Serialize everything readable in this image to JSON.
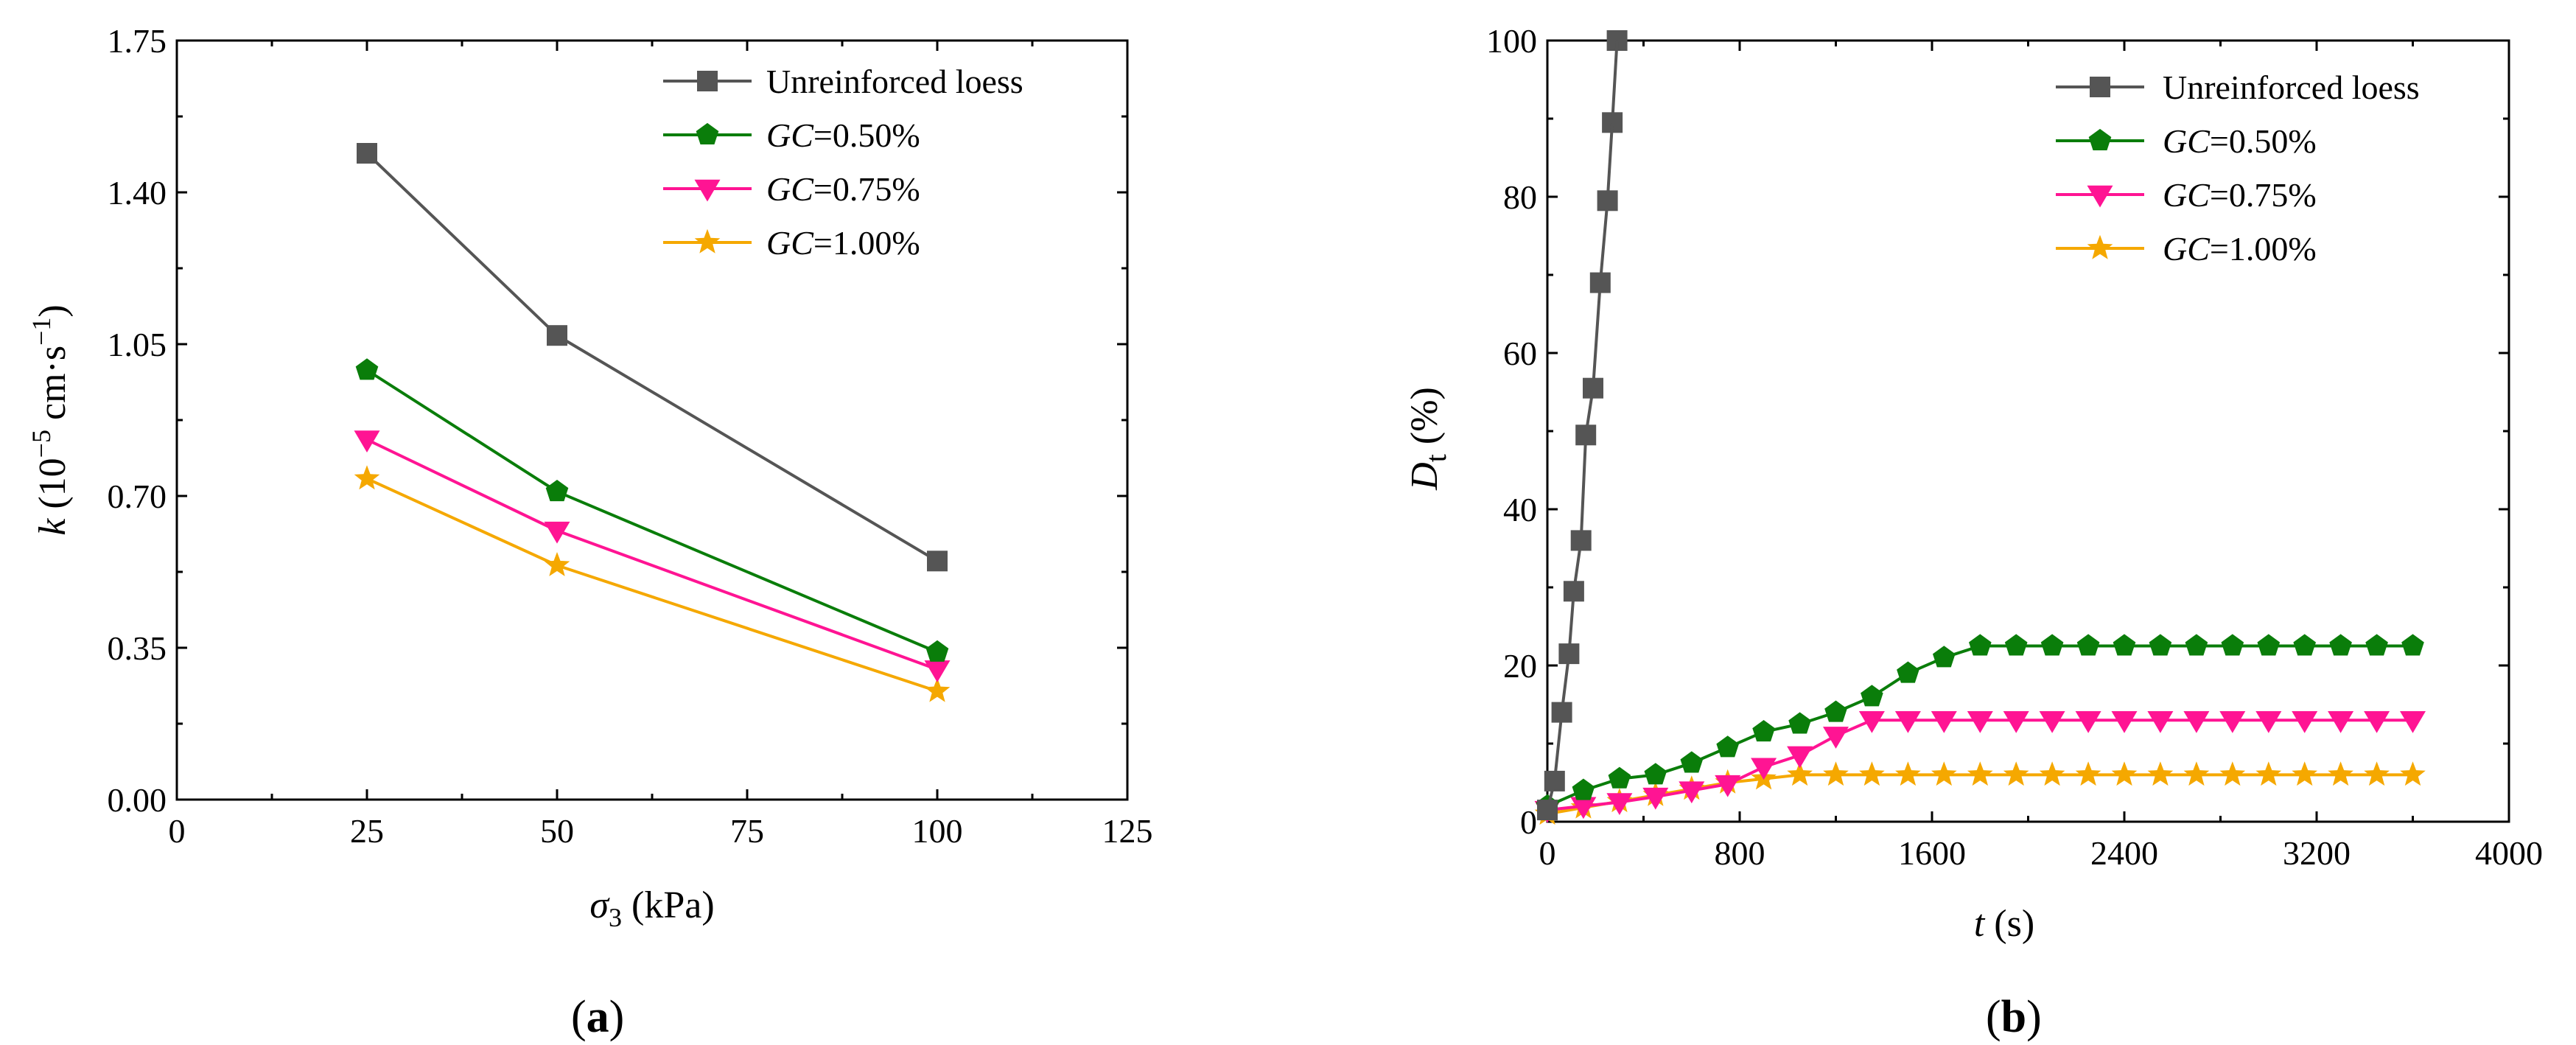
{
  "chart_data": [
    {
      "id": "a",
      "type": "line",
      "panel_label": {
        "open": "(",
        "letter": "a",
        "close": ")"
      },
      "xlabel": {
        "symbol": "σ",
        "sub": "3",
        "unit": " (kPa)"
      },
      "ylabel": {
        "symbol": "k",
        "pre": " (10",
        "exp": "−5",
        "mid": " cm·s",
        "exp2": "−1",
        "post": ")"
      },
      "xlim": [
        0,
        125
      ],
      "ylim": [
        0,
        1.75
      ],
      "xticks": [
        0,
        25,
        50,
        75,
        100,
        125
      ],
      "yticks": [
        0.0,
        0.35,
        0.7,
        1.05,
        1.4,
        1.75
      ],
      "xtick_labels": [
        "0",
        "25",
        "50",
        "75",
        "100",
        "125"
      ],
      "ytick_labels": [
        "0.00",
        "0.35",
        "0.70",
        "1.05",
        "1.40",
        "1.75"
      ],
      "legend_position": "top-right",
      "series": [
        {
          "key": "unreinforced",
          "label": "Unreinforced loess",
          "color": "#555555",
          "marker": "square",
          "x": [
            25,
            50,
            100
          ],
          "y": [
            1.49,
            1.07,
            0.55
          ]
        },
        {
          "key": "gc050",
          "label_it": "GC",
          "label_rest": "=0.50%",
          "color": "#0a7d0a",
          "marker": "pentagon",
          "x": [
            25,
            50,
            100
          ],
          "y": [
            0.99,
            0.71,
            0.34
          ]
        },
        {
          "key": "gc075",
          "label_it": "GC",
          "label_rest": "=0.75%",
          "color": "#ff1493",
          "marker": "triangle-down",
          "x": [
            25,
            50,
            100
          ],
          "y": [
            0.83,
            0.62,
            0.3
          ]
        },
        {
          "key": "gc100",
          "label_it": "GC",
          "label_rest": "=1.00%",
          "color": "#f5a800",
          "marker": "star",
          "x": [
            25,
            50,
            100
          ],
          "y": [
            0.74,
            0.54,
            0.25
          ]
        }
      ]
    },
    {
      "id": "b",
      "type": "line",
      "panel_label": {
        "open": "(",
        "letter": "b",
        "close": ")"
      },
      "xlabel": {
        "symbol": "t",
        "unit": " (s)"
      },
      "ylabel": {
        "symbol": "D",
        "sub": "t",
        "unit": " (%)"
      },
      "xlim": [
        0,
        4000
      ],
      "ylim": [
        0,
        100
      ],
      "xticks": [
        0,
        800,
        1600,
        2400,
        3200,
        4000
      ],
      "yticks": [
        0,
        20,
        40,
        60,
        80,
        100
      ],
      "xtick_labels": [
        "0",
        "800",
        "1600",
        "2400",
        "3200",
        "4000"
      ],
      "ytick_labels": [
        "0",
        "20",
        "40",
        "60",
        "80",
        "100"
      ],
      "legend_position": "top-right",
      "series": [
        {
          "key": "unreinforced",
          "label": "Unreinforced loess",
          "color": "#555555",
          "marker": "square",
          "x": [
            0,
            30,
            60,
            90,
            110,
            140,
            160,
            190,
            220,
            250
          ],
          "y": [
            1.5,
            5.2,
            14,
            21.5,
            29.5,
            36,
            49.5,
            55.5,
            69,
            79.5
          ]
        },
        {
          "key": "unreinforced_extra",
          "hidden_legend": true,
          "color": "#555555",
          "marker": "square",
          "x": [
            270,
            290
          ],
          "y": [
            89.5,
            100
          ]
        },
        {
          "key": "gc050",
          "label_it": "GC",
          "label_rest": "=0.50%",
          "color": "#0a7d0a",
          "marker": "pentagon",
          "x": [
            0,
            150,
            300,
            450,
            600,
            750,
            900,
            1050,
            1200,
            1350,
            1500,
            1650,
            1800,
            1950,
            2100,
            2250,
            2400,
            2550,
            2700,
            2850,
            3000,
            3150,
            3300,
            3450,
            3600
          ],
          "y": [
            2,
            4,
            5.5,
            6,
            7.5,
            9.5,
            11.5,
            12.5,
            14,
            16,
            19,
            21,
            22.5,
            22.5,
            22.5,
            22.5,
            22.5,
            22.5,
            22.5,
            22.5,
            22.5,
            22.5,
            22.5,
            22.5,
            22.5
          ]
        },
        {
          "key": "gc075",
          "label_it": "GC",
          "label_rest": "=0.75%",
          "color": "#ff1493",
          "marker": "triangle-down",
          "x": [
            0,
            150,
            300,
            450,
            600,
            750,
            900,
            1050,
            1200,
            1350,
            1500,
            1650,
            1800,
            1950,
            2100,
            2250,
            2400,
            2550,
            2700,
            2850,
            3000,
            3150,
            3300,
            3450,
            3600
          ],
          "y": [
            1.5,
            2,
            2.5,
            3.2,
            4,
            4.8,
            7,
            8.5,
            11,
            13,
            13,
            13,
            13,
            13,
            13,
            13,
            13,
            13,
            13,
            13,
            13,
            13,
            13,
            13,
            13
          ]
        },
        {
          "key": "gc100",
          "label_it": "GC",
          "label_rest": "=1.00%",
          "color": "#f5a800",
          "marker": "star",
          "x": [
            0,
            150,
            300,
            450,
            600,
            750,
            900,
            1050,
            1200,
            1350,
            1500,
            1650,
            1800,
            1950,
            2100,
            2250,
            2400,
            2550,
            2700,
            2850,
            3000,
            3150,
            3300,
            3450,
            3600
          ],
          "y": [
            1,
            1.8,
            2.6,
            3.4,
            4.2,
            5,
            5.5,
            6,
            6,
            6,
            6,
            6,
            6,
            6,
            6,
            6,
            6,
            6,
            6,
            6,
            6,
            6,
            6,
            6,
            6
          ]
        }
      ]
    }
  ]
}
